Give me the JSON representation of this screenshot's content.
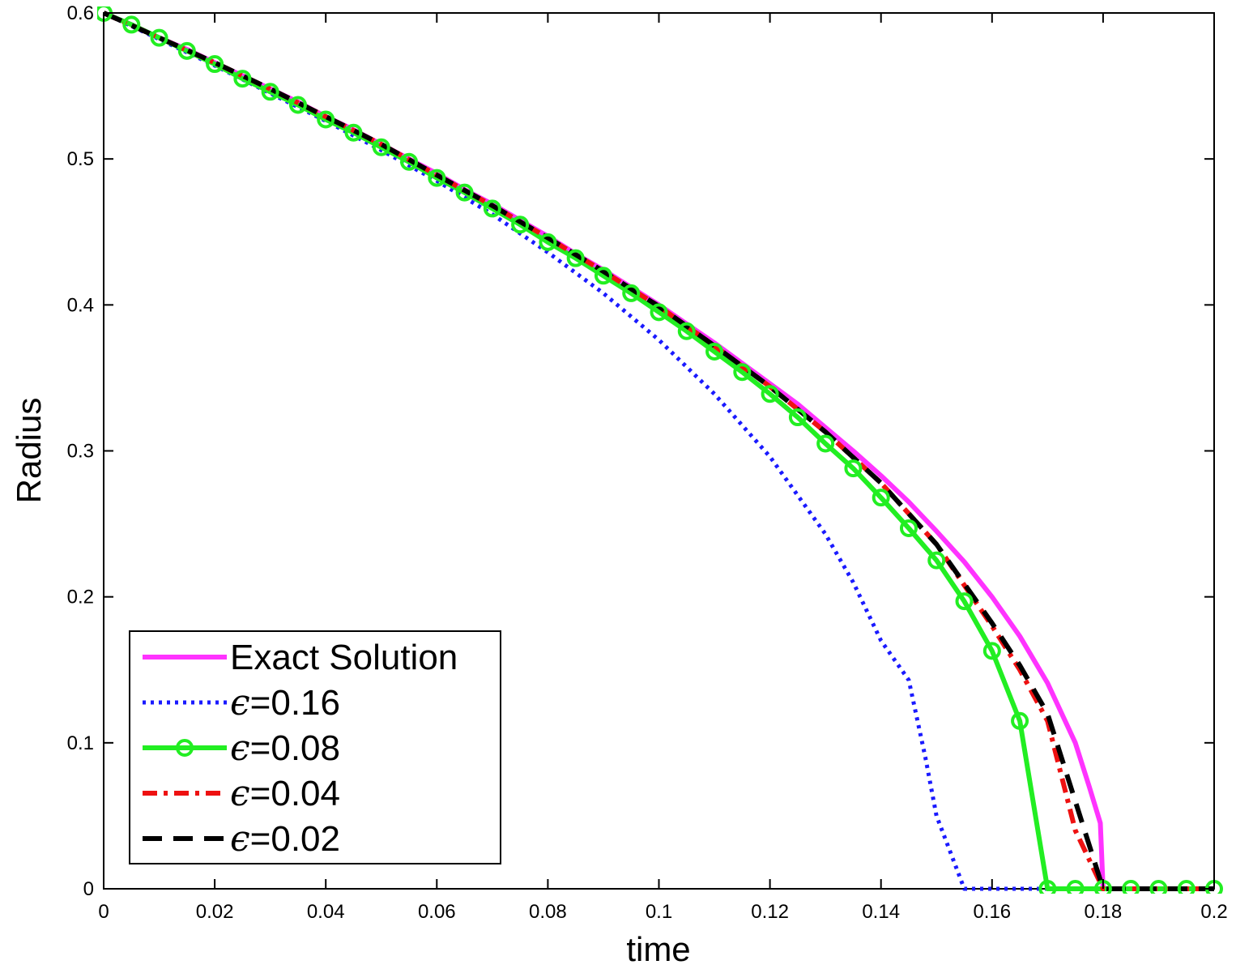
{
  "chart_data": {
    "type": "line",
    "xlabel": "time",
    "ylabel": "Radius",
    "xlim": [
      0,
      0.2
    ],
    "ylim": [
      0,
      0.6
    ],
    "x_ticks": [
      "0",
      "0.02",
      "0.04",
      "0.06",
      "0.08",
      "0.1",
      "0.12",
      "0.14",
      "0.16",
      "0.18",
      "0.2"
    ],
    "y_ticks": [
      "0",
      "0.1",
      "0.2",
      "0.3",
      "0.4",
      "0.5",
      "0.6"
    ],
    "grid": false,
    "legend_placement": "bottom-left",
    "series": [
      {
        "name": "Exact Solution",
        "color": "#ff33ff",
        "style": "solid",
        "marker": "none",
        "x": [
          0,
          0.005,
          0.01,
          0.015,
          0.02,
          0.025,
          0.03,
          0.035,
          0.04,
          0.045,
          0.05,
          0.055,
          0.06,
          0.065,
          0.07,
          0.075,
          0.08,
          0.085,
          0.09,
          0.095,
          0.1,
          0.105,
          0.11,
          0.115,
          0.12,
          0.125,
          0.13,
          0.135,
          0.14,
          0.145,
          0.15,
          0.155,
          0.16,
          0.165,
          0.17,
          0.175,
          0.1775,
          0.1795,
          0.18,
          0.185,
          0.19,
          0.195,
          0.2
        ],
        "y": [
          0.6,
          0.592,
          0.583,
          0.575,
          0.566,
          0.557,
          0.548,
          0.539,
          0.529,
          0.52,
          0.51,
          0.5,
          0.49,
          0.479,
          0.469,
          0.458,
          0.447,
          0.435,
          0.424,
          0.412,
          0.4,
          0.387,
          0.374,
          0.36,
          0.346,
          0.332,
          0.316,
          0.3,
          0.283,
          0.265,
          0.245,
          0.224,
          0.2,
          0.173,
          0.141,
          0.1,
          0.07,
          0.045,
          0,
          0,
          0,
          0,
          0
        ]
      },
      {
        "name": "ϵ=0.16",
        "color": "#1a1aff",
        "style": "dotted",
        "marker": "none",
        "x": [
          0,
          0.01,
          0.02,
          0.03,
          0.04,
          0.05,
          0.06,
          0.07,
          0.08,
          0.09,
          0.1,
          0.11,
          0.12,
          0.13,
          0.135,
          0.14,
          0.145,
          0.148,
          0.15,
          0.152,
          0.155,
          0.16,
          0.17,
          0.18,
          0.19,
          0.2
        ],
        "y": [
          0.6,
          0.582,
          0.564,
          0.545,
          0.526,
          0.506,
          0.485,
          0.462,
          0.436,
          0.408,
          0.376,
          0.339,
          0.296,
          0.243,
          0.21,
          0.17,
          0.143,
          0.09,
          0.05,
          0.03,
          0,
          0,
          0,
          0,
          0,
          0
        ]
      },
      {
        "name": "ϵ=0.08",
        "color": "#22ee22",
        "style": "solid",
        "marker": "circle",
        "x": [
          0,
          0.005,
          0.01,
          0.015,
          0.02,
          0.025,
          0.03,
          0.035,
          0.04,
          0.045,
          0.05,
          0.055,
          0.06,
          0.065,
          0.07,
          0.075,
          0.08,
          0.085,
          0.09,
          0.095,
          0.1,
          0.105,
          0.11,
          0.115,
          0.12,
          0.125,
          0.13,
          0.135,
          0.14,
          0.145,
          0.15,
          0.155,
          0.16,
          0.165,
          0.17,
          0.175,
          0.18,
          0.185,
          0.19,
          0.195,
          0.2
        ],
        "y": [
          0.6,
          0.592,
          0.583,
          0.574,
          0.565,
          0.555,
          0.546,
          0.537,
          0.527,
          0.518,
          0.508,
          0.498,
          0.487,
          0.477,
          0.466,
          0.455,
          0.443,
          0.432,
          0.42,
          0.408,
          0.395,
          0.382,
          0.368,
          0.354,
          0.339,
          0.323,
          0.305,
          0.288,
          0.268,
          0.247,
          0.225,
          0.197,
          0.163,
          0.115,
          0,
          0,
          0,
          0,
          0,
          0,
          0
        ]
      },
      {
        "name": "ϵ=0.04",
        "color": "#ee1111",
        "style": "dashdot",
        "marker": "none",
        "x": [
          0,
          0.01,
          0.02,
          0.03,
          0.04,
          0.05,
          0.06,
          0.07,
          0.08,
          0.09,
          0.1,
          0.11,
          0.12,
          0.13,
          0.14,
          0.15,
          0.16,
          0.165,
          0.17,
          0.175,
          0.18,
          0.19,
          0.2
        ],
        "y": [
          0.6,
          0.583,
          0.566,
          0.548,
          0.529,
          0.51,
          0.489,
          0.468,
          0.446,
          0.423,
          0.399,
          0.372,
          0.344,
          0.313,
          0.278,
          0.236,
          0.18,
          0.15,
          0.115,
          0.04,
          0,
          0,
          0
        ]
      },
      {
        "name": "ϵ=0.02",
        "color": "#000000",
        "style": "dashed",
        "marker": "none",
        "x": [
          0,
          0.01,
          0.02,
          0.03,
          0.04,
          0.05,
          0.06,
          0.07,
          0.08,
          0.09,
          0.1,
          0.11,
          0.12,
          0.13,
          0.14,
          0.15,
          0.16,
          0.165,
          0.17,
          0.175,
          0.18,
          0.19,
          0.2
        ],
        "y": [
          0.6,
          0.583,
          0.566,
          0.548,
          0.529,
          0.51,
          0.489,
          0.468,
          0.446,
          0.423,
          0.399,
          0.372,
          0.344,
          0.313,
          0.278,
          0.236,
          0.182,
          0.153,
          0.12,
          0.06,
          0,
          0,
          0
        ]
      }
    ]
  }
}
